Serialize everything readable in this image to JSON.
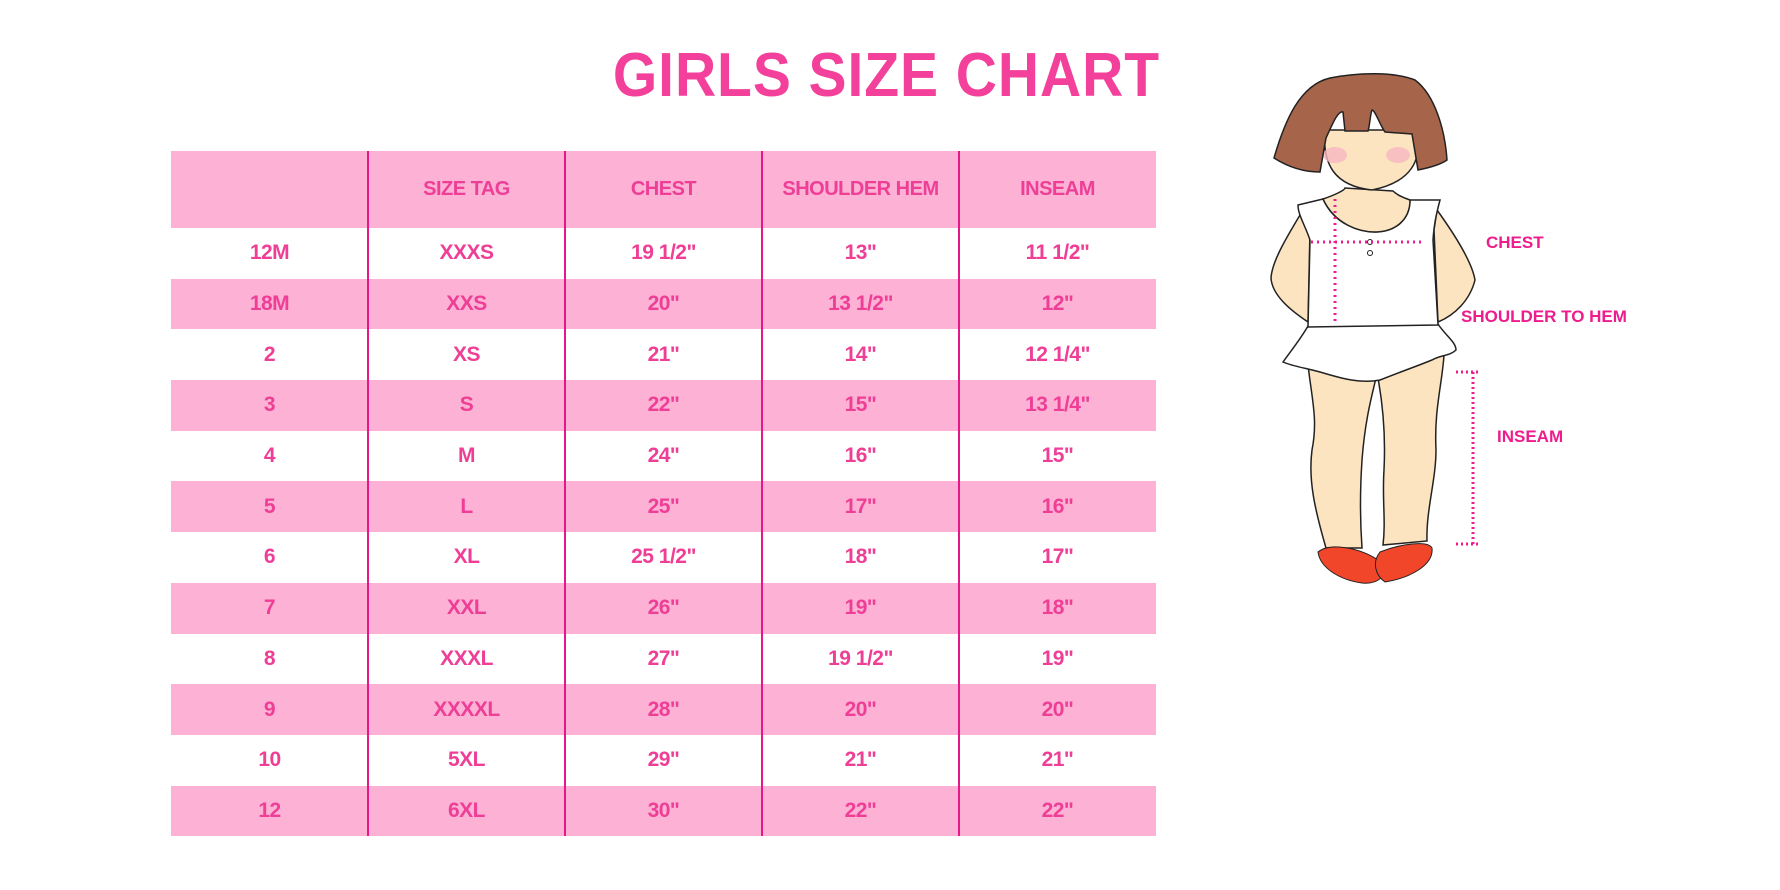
{
  "title": "GIRLS SIZE CHART",
  "colors": {
    "accent": "#f3409b",
    "row_band": "#fcb1d5",
    "divider": "#e6178a"
  },
  "table": {
    "headers": [
      "",
      "SIZE TAG",
      "CHEST",
      "SHOULDER HEM",
      "INSEAM"
    ],
    "rows": [
      [
        "12M",
        "XXXS",
        "19 1/2\"",
        "13\"",
        "11 1/2\""
      ],
      [
        "18M",
        "XXS",
        "20\"",
        "13 1/2\"",
        "12\""
      ],
      [
        "2",
        "XS",
        "21\"",
        "14\"",
        "12 1/4\""
      ],
      [
        "3",
        "S",
        "22\"",
        "15\"",
        "13 1/4\""
      ],
      [
        "4",
        "M",
        "24\"",
        "16\"",
        "15\""
      ],
      [
        "5",
        "L",
        "25\"",
        "17\"",
        "16\""
      ],
      [
        "6",
        "XL",
        "25 1/2\"",
        "18\"",
        "17\""
      ],
      [
        "7",
        "XXL",
        "26\"",
        "19\"",
        "18\""
      ],
      [
        "8",
        "XXXL",
        "27\"",
        "19 1/2\"",
        "19\""
      ],
      [
        "9",
        "XXXXL",
        "28\"",
        "20\"",
        "20\""
      ],
      [
        "10",
        "5XL",
        "29\"",
        "21\"",
        "21\""
      ],
      [
        "12",
        "6XL",
        "30\"",
        "22\"",
        "22\""
      ]
    ]
  },
  "figure": {
    "labels": {
      "chest": "CHEST",
      "shoulder_to_hem": "SHOULDER TO HEM",
      "inseam": "INSEAM"
    }
  }
}
